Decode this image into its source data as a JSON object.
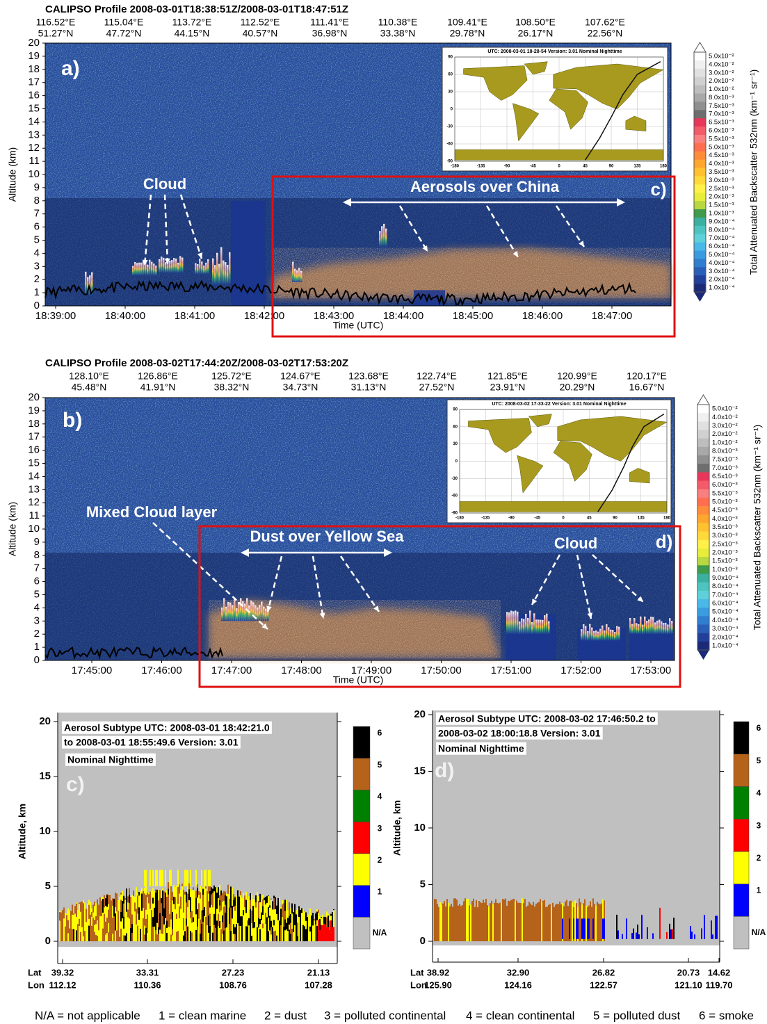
{
  "curtains": [
    {
      "title": "CALIPSO Profile 2008-03-01T18:38:51Z/2008-03-01T18:47:51Z",
      "lon_labels": [
        "116.52°E",
        "115.04°E",
        "113.72°E",
        "112.52°E",
        "111.41°E",
        "110.38°E",
        "109.41°E",
        "108.50°E",
        "107.62°E"
      ],
      "lat_labels": [
        "51.27°N",
        "47.72°N",
        "44.15°N",
        "40.57°N",
        "36.98°N",
        "33.38°N",
        "29.78°N",
        "26.17°N",
        "22.56°N"
      ],
      "ylabel": "Altitude (km)",
      "ylim": [
        0,
        20
      ],
      "yticks": [
        0,
        1,
        2,
        3,
        4,
        5,
        6,
        7,
        8,
        9,
        10,
        11,
        12,
        13,
        14,
        15,
        16,
        17,
        18,
        19,
        20
      ],
      "time_ticks": [
        "18:39:00",
        "18:40:00",
        "18:41:00",
        "18:42:00",
        "18:43:00",
        "18:44:00",
        "18:45:00",
        "18:46:00",
        "18:47:00"
      ],
      "xlabel": "Time (UTC)",
      "panel_label": "a)",
      "box_label": "c)",
      "annotations": [
        "Cloud",
        "Aerosols over China"
      ],
      "inset": {
        "header": "UTC: 2008-03-01   18-28-54    Version: 3.01   Nominal    Nighttime",
        "lat_ticks": [
          90,
          60,
          30,
          0,
          -30,
          -60,
          -90
        ],
        "lon_ticks": [
          -180,
          -135,
          -90,
          -45,
          0,
          45,
          90,
          135,
          180
        ]
      }
    },
    {
      "title": "CALIPSO Profile 2008-03-02T17:44:20Z/2008-03-02T17:53:20Z",
      "lon_labels": [
        "128.10°E",
        "126.86°E",
        "125.72°E",
        "124.67°E",
        "123.68°E",
        "122.74°E",
        "121.85°E",
        "120.99°E",
        "120.17°E"
      ],
      "lat_labels": [
        "45.48°N",
        "41.91°N",
        "38.32°N",
        "34.73°N",
        "31.13°N",
        "27.52°N",
        "23.91°N",
        "20.29°N",
        "16.67°N"
      ],
      "ylabel": "Altitude (km)",
      "ylim": [
        0,
        20
      ],
      "yticks": [
        0,
        1,
        2,
        3,
        4,
        5,
        6,
        7,
        8,
        9,
        10,
        11,
        12,
        13,
        14,
        15,
        16,
        17,
        18,
        19,
        20
      ],
      "time_ticks": [
        "17:45:00",
        "17:46:00",
        "17:47:00",
        "17:48:00",
        "17:49:00",
        "17:50:00",
        "17:51:00",
        "17:52:00",
        "17:53:00"
      ],
      "xlabel": "Time (UTC)",
      "panel_label": "b)",
      "box_label": "d)",
      "annotations": [
        "Mixed Cloud layer",
        "Dust over Yellow Sea",
        "Cloud"
      ],
      "inset": {
        "header": "UTC: 2008-03-02   17-33-22    Version: 3.01   Nominal    Nighttime",
        "lat_ticks": [
          90,
          60,
          30,
          0,
          -30,
          -60,
          -90
        ],
        "lon_ticks": [
          -180,
          -135,
          -90,
          -45,
          0,
          45,
          90,
          135,
          180
        ]
      }
    }
  ],
  "colorbar": {
    "title": "Total Attenuated Backscatter 532nm (km⁻¹ sr⁻¹)",
    "labels": [
      "5.0x10⁻²",
      "4.0x10⁻²",
      "3.0x10⁻²",
      "2.0x10⁻²",
      "1.0x10⁻²",
      "8.0x10⁻³",
      "7.5x10⁻³",
      "7.0x10⁻³",
      "6.5x10⁻³",
      "6.0x10⁻³",
      "5.5x10⁻³",
      "5.0x10⁻³",
      "4.5x10⁻³",
      "4.0x10⁻³",
      "3.5x10⁻³",
      "3.0x10⁻³",
      "2.5x10⁻³",
      "2.0x10⁻³",
      "1.5x10⁻³",
      "1.0x10⁻³",
      "9.0x10⁻⁴",
      "8.0x10⁻⁴",
      "7.0x10⁻⁴",
      "6.0x10⁻⁴",
      "5.0x10⁻⁴",
      "4.0x10⁻⁴",
      "3.0x10⁻⁴",
      "2.0x10⁻⁴",
      "1.0x10⁻⁴"
    ],
    "colors": [
      "#ffffff",
      "#f0f0f0",
      "#e0e0e0",
      "#d0d0d0",
      "#bdbdbd",
      "#a8a8a8",
      "#8f8f8f",
      "#6e6e6e",
      "#e8365a",
      "#f35a6a",
      "#f98080",
      "#ff6f4f",
      "#ff8c3a",
      "#ffa62e",
      "#ffc130",
      "#ffd83a",
      "#fff04a",
      "#e8ec3a",
      "#b7d840",
      "#3f9a4a",
      "#3bb0a0",
      "#4dc4c0",
      "#5fd0d8",
      "#4ab8e8",
      "#3a9ce0",
      "#2f7ed0",
      "#2a5fb8",
      "#22409a",
      "#1a2a78"
    ]
  },
  "subtypes": [
    {
      "title_lines": [
        "Aerosol Subtype    UTC:  2008-03-01    18:42:21.0",
        "to 2008-03-01   18:55:49.6    Version: 3.01",
        "Nominal Nighttime"
      ],
      "panel_label": "c)",
      "ylabel": "Altitude, km",
      "ylim": [
        0,
        20
      ],
      "yticks": [
        0,
        5,
        10,
        15,
        20
      ],
      "lat_label": "Lat",
      "lon_label": "Lon",
      "lats": [
        "39.32",
        "33.31",
        "27.23",
        "21.13"
      ],
      "lons": [
        "112.12",
        "110.36",
        "108.76",
        "107.28"
      ]
    },
    {
      "title_lines": [
        "Aerosol Subtype   UTC:  2008-03-02   17:46:50.2  to",
        "2008-03-02   18:00:18.8    Version: 3.01",
        "Nominal Nighttime"
      ],
      "panel_label": "d)",
      "ylabel": "Altitude, km",
      "ylim": [
        0,
        20
      ],
      "yticks": [
        0,
        5,
        10,
        15,
        20
      ],
      "lat_label": "Lat",
      "lon_label": "Lon",
      "lats": [
        "38.92",
        "32.90",
        "26.82",
        "20.73",
        "14.62"
      ],
      "lons": [
        "125.90",
        "124.16",
        "122.57",
        "121.10",
        "119.70"
      ]
    }
  ],
  "subtype_classes": {
    "labels": [
      "N/A",
      "1",
      "2",
      "3",
      "4",
      "5",
      "6"
    ],
    "colors": [
      "#c0c0c0",
      "#0000ff",
      "#ffff00",
      "#ff0000",
      "#008000",
      "#b5621a",
      "#000000"
    ]
  },
  "legend": [
    "N/A = not applicable",
    "1 = clean marine",
    "2 = dust",
    "3 = polluted continental",
    "4 = clean continental",
    "5 = polluted dust",
    "6 = smoke"
  ]
}
